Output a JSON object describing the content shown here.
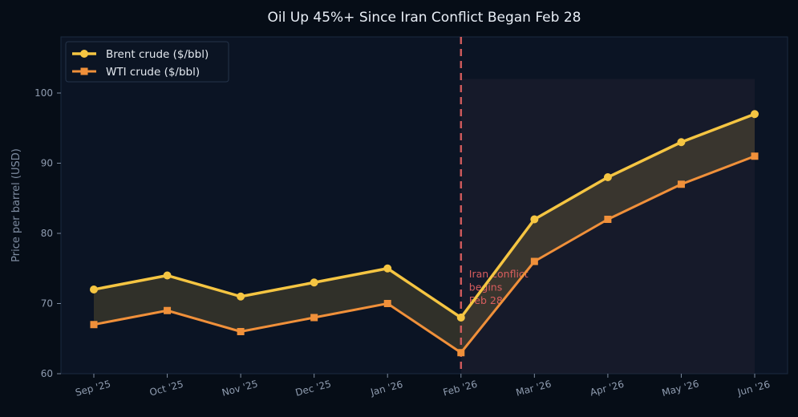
{
  "chart_data": {
    "type": "line",
    "title": "Oil Up 45%+ Since Iran Conflict Began Feb 28",
    "xlabel": "",
    "ylabel": "Price per barrel (USD)",
    "categories": [
      "Sep '25",
      "Oct '25",
      "Nov '25",
      "Dec '25",
      "Jan '26",
      "Feb '26",
      "Mar '26",
      "Apr '26",
      "May '26",
      "Jun '26"
    ],
    "ylim": [
      60,
      108
    ],
    "yticks": [
      60,
      70,
      80,
      90,
      100
    ],
    "grid": false,
    "legend_position": "top-left",
    "series": [
      {
        "name": "Brent crude ($/bbl)",
        "marker": "circle",
        "color": "#f5c542",
        "values": [
          72,
          74,
          71,
          73,
          75,
          68,
          82,
          88,
          93,
          97
        ]
      },
      {
        "name": "WTI crude ($/bbl)",
        "marker": "square",
        "color": "#f0903a",
        "values": [
          67,
          69,
          66,
          68,
          70,
          63,
          76,
          82,
          87,
          91
        ]
      }
    ],
    "spread_fill": {
      "between": [
        "Brent crude ($/bbl)",
        "WTI crude ($/bbl)"
      ],
      "color": "#f5c542"
    },
    "event_marker": {
      "category": "Feb '26",
      "color": "#e06060",
      "label_lines": [
        "Iran conflict",
        "begins",
        "Feb 28"
      ]
    },
    "shaded_region": {
      "from": "Feb '26",
      "to": "Jun '26",
      "ymax": 102
    }
  }
}
